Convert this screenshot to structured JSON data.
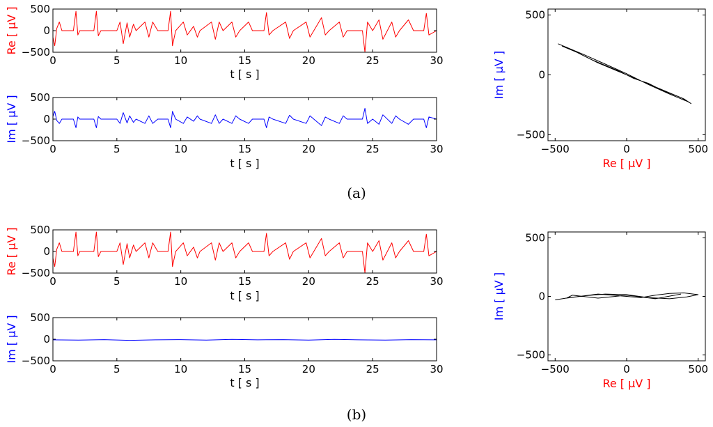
{
  "colors": {
    "real": "#ff0000",
    "imag": "#0000ff",
    "trajectory": "#000000",
    "axes": "#000000"
  },
  "panel_labels": [
    "(a)",
    "(b)"
  ],
  "chart_data": [
    {
      "type": "line",
      "id": "a-re",
      "panel": "(a)",
      "xlabel": "t [ s ]",
      "ylabel": "Re [ μV ]",
      "xlim": [
        0,
        30
      ],
      "ylim": [
        -500,
        500
      ],
      "xticks": [
        0,
        5,
        10,
        15,
        20,
        25,
        30
      ],
      "yticks": [
        500,
        0,
        -500
      ],
      "series": [
        {
          "color": "#ff0000",
          "x": [
            0,
            0.14,
            0.3,
            0.5,
            0.7,
            1.6,
            1.8,
            1.95,
            2.1,
            3.2,
            3.4,
            3.55,
            3.75,
            5.0,
            5.25,
            5.5,
            5.8,
            6.0,
            6.3,
            6.5,
            7.2,
            7.5,
            7.8,
            8.2,
            9.0,
            9.2,
            9.35,
            9.6,
            10.2,
            10.5,
            11.0,
            11.3,
            11.5,
            12.4,
            12.7,
            13.0,
            13.3,
            14.0,
            14.3,
            14.6,
            15.3,
            15.6,
            16.5,
            16.7,
            16.9,
            17.2,
            18.2,
            18.5,
            18.8,
            19.8,
            20.1,
            20.4,
            21.0,
            21.3,
            21.6,
            22.4,
            22.7,
            23.0,
            24.2,
            24.4,
            24.6,
            25.0,
            25.5,
            25.8,
            26.5,
            26.8,
            27.1,
            27.8,
            28.2,
            29.0,
            29.2,
            29.4,
            30.0
          ],
          "y": [
            -150,
            -350,
            50,
            200,
            0,
            0,
            450,
            -100,
            0,
            0,
            450,
            -120,
            0,
            0,
            200,
            -300,
            180,
            -150,
            150,
            0,
            200,
            -150,
            200,
            0,
            0,
            450,
            -350,
            0,
            200,
            -100,
            100,
            -150,
            0,
            200,
            -200,
            200,
            0,
            200,
            -150,
            0,
            200,
            0,
            0,
            420,
            -100,
            0,
            200,
            -180,
            0,
            200,
            -150,
            0,
            300,
            -100,
            0,
            200,
            -150,
            0,
            0,
            -500,
            200,
            0,
            250,
            -200,
            200,
            -150,
            0,
            250,
            0,
            0,
            400,
            -100,
            0
          ]
        }
      ]
    },
    {
      "type": "line",
      "id": "a-im",
      "panel": "(a)",
      "xlabel": "t [ s ]",
      "ylabel": "Im [ μV ]",
      "xlim": [
        0,
        30
      ],
      "ylim": [
        -500,
        500
      ],
      "xticks": [
        0,
        5,
        10,
        15,
        20,
        25,
        30
      ],
      "yticks": [
        500,
        0,
        -500
      ],
      "series": [
        {
          "color": "#0000ff",
          "x": [
            0,
            0.14,
            0.3,
            0.5,
            0.7,
            1.6,
            1.8,
            1.95,
            2.1,
            3.2,
            3.4,
            3.55,
            3.75,
            5.0,
            5.25,
            5.5,
            5.8,
            6.0,
            6.3,
            6.5,
            7.2,
            7.5,
            7.8,
            8.2,
            9.0,
            9.2,
            9.35,
            9.6,
            10.2,
            10.5,
            11.0,
            11.3,
            11.5,
            12.4,
            12.7,
            13.0,
            13.3,
            14.0,
            14.3,
            14.6,
            15.3,
            15.6,
            16.5,
            16.7,
            16.9,
            17.2,
            18.2,
            18.5,
            18.8,
            19.8,
            20.1,
            20.4,
            21.0,
            21.3,
            21.6,
            22.4,
            22.7,
            23.0,
            24.2,
            24.4,
            24.6,
            25.0,
            25.5,
            25.8,
            26.5,
            26.8,
            27.1,
            27.8,
            28.2,
            29.0,
            29.2,
            29.4,
            30.0
          ],
          "y": [
            60,
            180,
            -30,
            -100,
            0,
            0,
            -200,
            50,
            0,
            0,
            -200,
            60,
            0,
            0,
            -100,
            150,
            -90,
            75,
            -75,
            0,
            -100,
            75,
            -100,
            0,
            0,
            -200,
            180,
            0,
            -100,
            50,
            -50,
            75,
            0,
            -100,
            100,
            -100,
            0,
            -100,
            75,
            0,
            -100,
            0,
            0,
            -200,
            50,
            0,
            -100,
            90,
            0,
            -100,
            75,
            0,
            -150,
            50,
            0,
            -100,
            75,
            0,
            0,
            250,
            -100,
            0,
            -120,
            100,
            -100,
            75,
            0,
            -120,
            0,
            0,
            -200,
            50,
            0
          ]
        }
      ]
    },
    {
      "type": "line",
      "id": "a-xy",
      "panel": "(a)",
      "xlabel": "Re [ μV ]",
      "ylabel": "Im [ μV ]",
      "xlim": [
        -550,
        550
      ],
      "ylim": [
        -550,
        550
      ],
      "xticks": [
        -500,
        0,
        500
      ],
      "yticks": [
        500,
        0,
        -500
      ],
      "series": [
        {
          "color": "#000000",
          "x": [
            -480,
            -400,
            -300,
            -200,
            -100,
            0,
            100,
            200,
            300,
            400,
            450,
            380,
            250,
            150,
            50,
            -50,
            -150,
            -250,
            -350,
            -450,
            -420,
            -300,
            -150,
            0,
            150,
            300,
            420
          ],
          "y": [
            260,
            220,
            160,
            100,
            50,
            0,
            -50,
            -100,
            -150,
            -200,
            -240,
            -190,
            -130,
            -70,
            -30,
            30,
            80,
            130,
            190,
            240,
            230,
            170,
            90,
            10,
            -80,
            -160,
            -220
          ]
        }
      ]
    },
    {
      "type": "line",
      "id": "b-re",
      "panel": "(b)",
      "xlabel": "t [ s ]",
      "ylabel": "Re [ μV ]",
      "xlim": [
        0,
        30
      ],
      "ylim": [
        -500,
        500
      ],
      "xticks": [
        0,
        5,
        10,
        15,
        20,
        25,
        30
      ],
      "yticks": [
        500,
        0,
        -500
      ],
      "series": [
        {
          "color": "#ff0000",
          "x": [
            0,
            0.14,
            0.3,
            0.5,
            0.7,
            1.6,
            1.8,
            1.95,
            2.1,
            3.2,
            3.4,
            3.55,
            3.75,
            5.0,
            5.25,
            5.5,
            5.8,
            6.0,
            6.3,
            6.5,
            7.2,
            7.5,
            7.8,
            8.2,
            9.0,
            9.2,
            9.35,
            9.6,
            10.2,
            10.5,
            11.0,
            11.3,
            11.5,
            12.4,
            12.7,
            13.0,
            13.3,
            14.0,
            14.3,
            14.6,
            15.3,
            15.6,
            16.5,
            16.7,
            16.9,
            17.2,
            18.2,
            18.5,
            18.8,
            19.8,
            20.1,
            20.4,
            21.0,
            21.3,
            21.6,
            22.4,
            22.7,
            23.0,
            24.2,
            24.4,
            24.6,
            25.0,
            25.5,
            25.8,
            26.5,
            26.8,
            27.1,
            27.8,
            28.2,
            29.0,
            29.2,
            29.4,
            30.0
          ],
          "y": [
            -150,
            -350,
            50,
            200,
            0,
            0,
            450,
            -100,
            0,
            0,
            450,
            -120,
            0,
            0,
            200,
            -300,
            180,
            -150,
            150,
            0,
            200,
            -150,
            200,
            0,
            0,
            450,
            -350,
            0,
            200,
            -100,
            100,
            -150,
            0,
            200,
            -200,
            200,
            0,
            200,
            -150,
            0,
            200,
            0,
            0,
            420,
            -100,
            0,
            200,
            -180,
            0,
            200,
            -150,
            0,
            300,
            -100,
            0,
            200,
            -150,
            0,
            0,
            -500,
            200,
            0,
            250,
            -200,
            200,
            -150,
            0,
            250,
            0,
            0,
            400,
            -100,
            0
          ]
        }
      ]
    },
    {
      "type": "line",
      "id": "b-im",
      "panel": "(b)",
      "xlabel": "t [ s ]",
      "ylabel": "Im [ μV ]",
      "xlim": [
        0,
        30
      ],
      "ylim": [
        -500,
        500
      ],
      "xticks": [
        0,
        5,
        10,
        15,
        20,
        25,
        30
      ],
      "yticks": [
        500,
        0,
        -500
      ],
      "series": [
        {
          "color": "#0000ff",
          "x": [
            0,
            2,
            4,
            6,
            8,
            10,
            12,
            14,
            16,
            18,
            20,
            22,
            24,
            26,
            28,
            30
          ],
          "y": [
            -15,
            -20,
            -10,
            -25,
            -15,
            -10,
            -20,
            -5,
            -15,
            -10,
            -20,
            -5,
            -15,
            -20,
            -10,
            -15
          ]
        }
      ]
    },
    {
      "type": "line",
      "id": "b-xy",
      "panel": "(b)",
      "xlabel": "Re [ μV ]",
      "ylabel": "Im [ μV ]",
      "xlim": [
        -550,
        550
      ],
      "ylim": [
        -550,
        550
      ],
      "xticks": [
        -500,
        0,
        500
      ],
      "yticks": [
        500,
        0,
        -500
      ],
      "series": [
        {
          "color": "#000000",
          "x": [
            -500,
            -400,
            -300,
            -200,
            -100,
            0,
            100,
            200,
            300,
            400,
            500,
            420,
            300,
            150,
            0,
            -150,
            -300,
            -420,
            -380,
            -200,
            0,
            200,
            380
          ],
          "y": [
            -30,
            -10,
            5,
            20,
            10,
            0,
            -10,
            10,
            25,
            30,
            15,
            -5,
            -20,
            -10,
            15,
            20,
            5,
            -15,
            10,
            -15,
            10,
            -20,
            20
          ]
        }
      ]
    }
  ]
}
